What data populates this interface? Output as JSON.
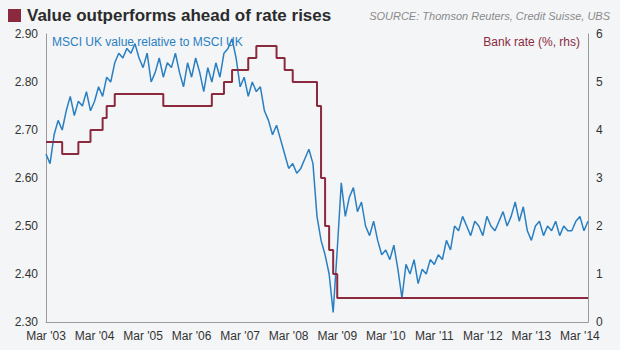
{
  "chart_data": {
    "type": "line",
    "title": "Value outperforms ahead of rate rises",
    "source": "SOURCE: Thomson Reuters, Credit Suisse, UBS",
    "categories": [
      "Mar '03",
      null,
      null,
      null,
      null,
      null,
      null,
      null,
      null,
      null,
      null,
      null,
      "Mar '04",
      null,
      null,
      null,
      null,
      null,
      null,
      null,
      null,
      null,
      null,
      null,
      "Mar '05",
      null,
      null,
      null,
      null,
      null,
      null,
      null,
      null,
      null,
      null,
      null,
      "Mar '06",
      null,
      null,
      null,
      null,
      null,
      null,
      null,
      null,
      null,
      null,
      null,
      "Mar '07",
      null,
      null,
      null,
      null,
      null,
      null,
      null,
      null,
      null,
      null,
      null,
      "Mar '08",
      null,
      null,
      null,
      null,
      null,
      null,
      null,
      null,
      null,
      null,
      null,
      "Mar '09",
      null,
      null,
      null,
      null,
      null,
      null,
      null,
      null,
      null,
      null,
      null,
      "Mar '10",
      null,
      null,
      null,
      null,
      null,
      null,
      null,
      null,
      null,
      null,
      null,
      "Mar '11",
      null,
      null,
      null,
      null,
      null,
      null,
      null,
      null,
      null,
      null,
      null,
      "Mar '12",
      null,
      null,
      null,
      null,
      null,
      null,
      null,
      null,
      null,
      null,
      null,
      "Mar '13",
      null,
      null,
      null,
      null,
      null,
      null,
      null,
      null,
      null,
      null,
      null,
      "Mar '14",
      null,
      null
    ],
    "series": [
      {
        "name": "MSCI UK value relative to MSCI UK",
        "color": "#2a7fc1",
        "line_style": "solid",
        "values": [
          2.65,
          2.63,
          2.69,
          2.72,
          2.7,
          2.74,
          2.77,
          2.73,
          2.76,
          2.75,
          2.78,
          2.74,
          2.76,
          2.79,
          2.77,
          2.81,
          2.8,
          2.84,
          2.86,
          2.85,
          2.87,
          2.86,
          2.88,
          2.85,
          2.83,
          2.86,
          2.8,
          2.82,
          2.85,
          2.81,
          2.84,
          2.83,
          2.86,
          2.82,
          2.79,
          2.84,
          2.81,
          2.85,
          2.82,
          2.78,
          2.83,
          2.8,
          2.84,
          2.81,
          2.86,
          2.87,
          2.89,
          2.85,
          2.79,
          2.81,
          2.77,
          2.8,
          2.78,
          2.79,
          2.74,
          2.72,
          2.69,
          2.71,
          2.68,
          2.65,
          2.62,
          2.63,
          2.61,
          2.62,
          2.64,
          2.66,
          2.63,
          2.52,
          2.47,
          2.44,
          2.4,
          2.32,
          2.45,
          2.59,
          2.52,
          2.56,
          2.58,
          2.53,
          2.55,
          2.5,
          2.48,
          2.51,
          2.47,
          2.44,
          2.45,
          2.43,
          2.46,
          2.41,
          2.35,
          2.42,
          2.4,
          2.43,
          2.38,
          2.41,
          2.4,
          2.43,
          2.42,
          2.44,
          2.43,
          2.47,
          2.45,
          2.5,
          2.49,
          2.52,
          2.5,
          2.48,
          2.51,
          2.5,
          2.48,
          2.52,
          2.5,
          2.49,
          2.51,
          2.53,
          2.5,
          2.52,
          2.55,
          2.51,
          2.54,
          2.49,
          2.47,
          2.5,
          2.51,
          2.48,
          2.5,
          2.49,
          2.51,
          2.48,
          2.5,
          2.49,
          2.49,
          2.51,
          2.52,
          2.49,
          2.51
        ]
      },
      {
        "name": "Bank rate (%, rhs)",
        "color": "#8b2a3e",
        "line_style": "step",
        "axis": "y2",
        "values": [
          3.75,
          3.75,
          3.75,
          3.75,
          3.5,
          3.5,
          3.5,
          3.5,
          3.75,
          3.75,
          3.75,
          4,
          4,
          4,
          4.25,
          4.5,
          4.5,
          4.75,
          4.75,
          4.75,
          4.75,
          4.75,
          4.75,
          4.75,
          4.75,
          4.75,
          4.75,
          4.75,
          4.75,
          4.5,
          4.5,
          4.5,
          4.5,
          4.5,
          4.5,
          4.5,
          4.5,
          4.5,
          4.5,
          4.5,
          4.5,
          4.75,
          4.75,
          4.75,
          5,
          5,
          5.25,
          5.25,
          5.25,
          5.25,
          5.5,
          5.5,
          5.75,
          5.75,
          5.75,
          5.75,
          5.75,
          5.5,
          5.5,
          5.25,
          5.25,
          5,
          5,
          5,
          5,
          5,
          5,
          4.5,
          3,
          2,
          1.5,
          1,
          0.5,
          0.5,
          0.5,
          0.5,
          0.5,
          0.5,
          0.5,
          0.5,
          0.5,
          0.5,
          0.5,
          0.5,
          0.5,
          0.5,
          0.5,
          0.5,
          0.5,
          0.5,
          0.5,
          0.5,
          0.5,
          0.5,
          0.5,
          0.5,
          0.5,
          0.5,
          0.5,
          0.5,
          0.5,
          0.5,
          0.5,
          0.5,
          0.5,
          0.5,
          0.5,
          0.5,
          0.5,
          0.5,
          0.5,
          0.5,
          0.5,
          0.5,
          0.5,
          0.5,
          0.5,
          0.5,
          0.5,
          0.5,
          0.5,
          0.5,
          0.5,
          0.5,
          0.5,
          0.5,
          0.5,
          0.5,
          0.5,
          0.5,
          0.5,
          0.5,
          0.5,
          0.5,
          0.5
        ]
      }
    ],
    "ylim": [
      2.3,
      2.9
    ],
    "yticks": [
      {
        "value": 2.3,
        "label": "2.30"
      },
      {
        "value": 2.4,
        "label": "2.40"
      },
      {
        "value": 2.5,
        "label": "2.50"
      },
      {
        "value": 2.6,
        "label": "2.60"
      },
      {
        "value": 2.7,
        "label": "2.70"
      },
      {
        "value": 2.8,
        "label": "2.80"
      },
      {
        "value": 2.9,
        "label": "2.90"
      }
    ],
    "y2lim": [
      0,
      6
    ],
    "y2ticks": [
      0,
      1,
      2,
      3,
      4,
      5,
      6
    ],
    "grid": false
  }
}
